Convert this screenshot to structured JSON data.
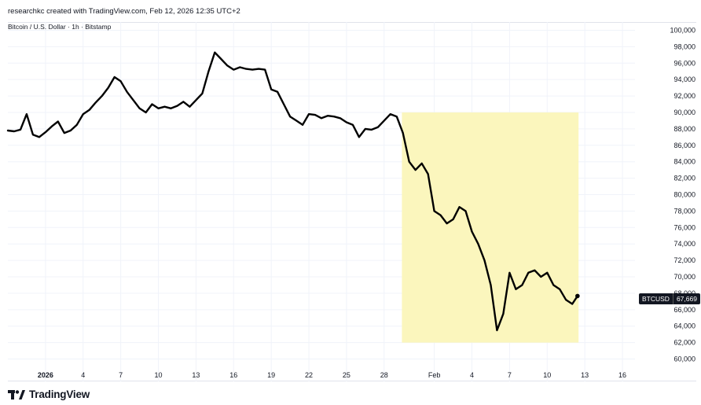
{
  "header": {
    "credit": "researchkc created with TradingView.com, Feb 12, 2026 12:35 UTC+2",
    "symbol_title": "Bitcoin / U.S. Dollar · 1h · Bitstamp"
  },
  "brand": {
    "name": "TradingView"
  },
  "price_badge": {
    "symbol": "BTCUSD",
    "value": "67,669"
  },
  "colors": {
    "line": "#000000",
    "highlight": "#fbf6bd",
    "grid": "#f0f3fa",
    "text": "#131722"
  },
  "chart_data": {
    "type": "line",
    "title": "",
    "xlabel": "",
    "ylabel": "",
    "ylim": [
      59000,
      101000
    ],
    "y_ticks": [
      "100,000",
      "98,000",
      "96,000",
      "94,000",
      "92,000",
      "90,000",
      "88,000",
      "86,000",
      "84,000",
      "82,000",
      "80,000",
      "78,000",
      "76,000",
      "74,000",
      "72,000",
      "70,000",
      "68,000",
      "66,000",
      "64,000",
      "62,000",
      "60,000"
    ],
    "x_range": [
      "2025-12-29",
      "2026-02-17"
    ],
    "x_ticks": [
      {
        "label": "2026",
        "date": "2026-01-01"
      },
      {
        "label": "4",
        "date": "2026-01-04"
      },
      {
        "label": "7",
        "date": "2026-01-07"
      },
      {
        "label": "10",
        "date": "2026-01-10"
      },
      {
        "label": "13",
        "date": "2026-01-13"
      },
      {
        "label": "16",
        "date": "2026-01-16"
      },
      {
        "label": "19",
        "date": "2026-01-19"
      },
      {
        "label": "22",
        "date": "2026-01-22"
      },
      {
        "label": "25",
        "date": "2026-01-25"
      },
      {
        "label": "28",
        "date": "2026-01-28"
      },
      {
        "label": "Feb",
        "date": "2026-02-01"
      },
      {
        "label": "4",
        "date": "2026-02-04"
      },
      {
        "label": "7",
        "date": "2026-02-07"
      },
      {
        "label": "10",
        "date": "2026-02-10"
      },
      {
        "label": "13",
        "date": "2026-02-13"
      },
      {
        "label": "16",
        "date": "2026-02-16"
      }
    ],
    "highlight_range": {
      "x": [
        "2026-01-29 10:00",
        "2026-02-12 12:00"
      ],
      "y": [
        62000,
        90000
      ]
    },
    "last_price": 67669,
    "series": [
      {
        "points": [
          [
            "2025-12-29 00:00",
            87800
          ],
          [
            "2025-12-29 12:00",
            87700
          ],
          [
            "2025-12-30 00:00",
            87900
          ],
          [
            "2025-12-30 12:00",
            89800
          ],
          [
            "2025-12-31 00:00",
            87300
          ],
          [
            "2025-12-31 12:00",
            87000
          ],
          [
            "2026-01-01 00:00",
            87600
          ],
          [
            "2026-01-01 12:00",
            88300
          ],
          [
            "2026-01-02 00:00",
            88900
          ],
          [
            "2026-01-02 12:00",
            87500
          ],
          [
            "2026-01-03 00:00",
            87800
          ],
          [
            "2026-01-03 12:00",
            88500
          ],
          [
            "2026-01-04 00:00",
            89800
          ],
          [
            "2026-01-04 12:00",
            90300
          ],
          [
            "2026-01-05 00:00",
            91200
          ],
          [
            "2026-01-05 12:00",
            92000
          ],
          [
            "2026-01-06 00:00",
            93000
          ],
          [
            "2026-01-06 12:00",
            94300
          ],
          [
            "2026-01-07 00:00",
            93800
          ],
          [
            "2026-01-07 12:00",
            92500
          ],
          [
            "2026-01-08 00:00",
            91500
          ],
          [
            "2026-01-08 12:00",
            90500
          ],
          [
            "2026-01-09 00:00",
            90000
          ],
          [
            "2026-01-09 12:00",
            91000
          ],
          [
            "2026-01-10 00:00",
            90500
          ],
          [
            "2026-01-10 12:00",
            90700
          ],
          [
            "2026-01-11 00:00",
            90500
          ],
          [
            "2026-01-11 12:00",
            90800
          ],
          [
            "2026-01-12 00:00",
            91300
          ],
          [
            "2026-01-12 12:00",
            90700
          ],
          [
            "2026-01-13 00:00",
            91500
          ],
          [
            "2026-01-13 12:00",
            92300
          ],
          [
            "2026-01-14 00:00",
            95000
          ],
          [
            "2026-01-14 12:00",
            97300
          ],
          [
            "2026-01-15 00:00",
            96500
          ],
          [
            "2026-01-15 12:00",
            95700
          ],
          [
            "2026-01-16 00:00",
            95200
          ],
          [
            "2026-01-16 12:00",
            95500
          ],
          [
            "2026-01-17 00:00",
            95300
          ],
          [
            "2026-01-17 12:00",
            95200
          ],
          [
            "2026-01-18 00:00",
            95300
          ],
          [
            "2026-01-18 12:00",
            95200
          ],
          [
            "2026-01-19 00:00",
            92800
          ],
          [
            "2026-01-19 12:00",
            92500
          ],
          [
            "2026-01-20 00:00",
            91000
          ],
          [
            "2026-01-20 12:00",
            89500
          ],
          [
            "2026-01-21 00:00",
            89000
          ],
          [
            "2026-01-21 12:00",
            88500
          ],
          [
            "2026-01-22 00:00",
            89800
          ],
          [
            "2026-01-22 12:00",
            89700
          ],
          [
            "2026-01-23 00:00",
            89300
          ],
          [
            "2026-01-23 12:00",
            89600
          ],
          [
            "2026-01-24 00:00",
            89500
          ],
          [
            "2026-01-24 12:00",
            89300
          ],
          [
            "2026-01-25 00:00",
            88800
          ],
          [
            "2026-01-25 12:00",
            88500
          ],
          [
            "2026-01-26 00:00",
            87000
          ],
          [
            "2026-01-26 12:00",
            88000
          ],
          [
            "2026-01-27 00:00",
            87900
          ],
          [
            "2026-01-27 12:00",
            88200
          ],
          [
            "2026-01-28 00:00",
            89000
          ],
          [
            "2026-01-28 12:00",
            89800
          ],
          [
            "2026-01-29 00:00",
            89500
          ],
          [
            "2026-01-29 12:00",
            87500
          ],
          [
            "2026-01-30 00:00",
            84000
          ],
          [
            "2026-01-30 12:00",
            83000
          ],
          [
            "2026-01-31 00:00",
            83800
          ],
          [
            "2026-01-31 12:00",
            82500
          ],
          [
            "2026-02-01 00:00",
            78000
          ],
          [
            "2026-02-01 12:00",
            77500
          ],
          [
            "2026-02-02 00:00",
            76500
          ],
          [
            "2026-02-02 12:00",
            77000
          ],
          [
            "2026-02-03 00:00",
            78500
          ],
          [
            "2026-02-03 12:00",
            78000
          ],
          [
            "2026-02-04 00:00",
            75500
          ],
          [
            "2026-02-04 12:00",
            74000
          ],
          [
            "2026-02-05 00:00",
            72000
          ],
          [
            "2026-02-05 12:00",
            69000
          ],
          [
            "2026-02-06 00:00",
            63500
          ],
          [
            "2026-02-06 12:00",
            65500
          ],
          [
            "2026-02-07 00:00",
            70500
          ],
          [
            "2026-02-07 12:00",
            68500
          ],
          [
            "2026-02-08 00:00",
            69000
          ],
          [
            "2026-02-08 12:00",
            70500
          ],
          [
            "2026-02-09 00:00",
            70800
          ],
          [
            "2026-02-09 12:00",
            70000
          ],
          [
            "2026-02-10 00:00",
            70500
          ],
          [
            "2026-02-10 12:00",
            69000
          ],
          [
            "2026-02-11 00:00",
            68500
          ],
          [
            "2026-02-11 12:00",
            67200
          ],
          [
            "2026-02-12 00:00",
            66700
          ],
          [
            "2026-02-12 10:00",
            67669
          ]
        ]
      }
    ]
  }
}
